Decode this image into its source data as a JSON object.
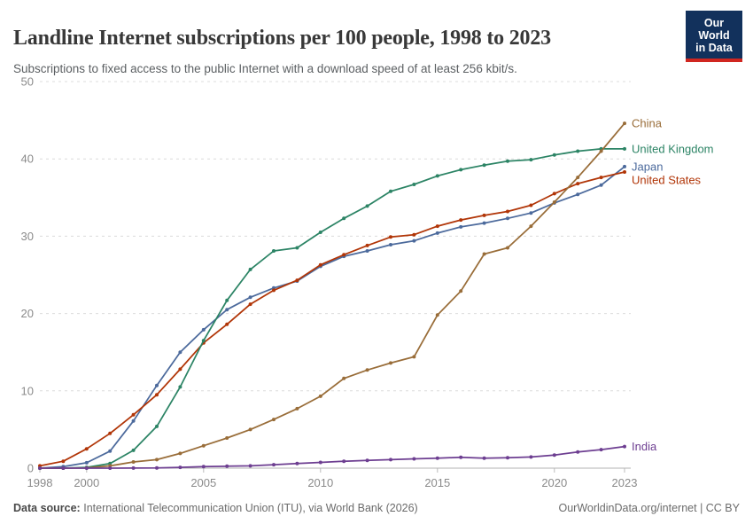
{
  "header": {
    "title": "Landline Internet subscriptions per 100 people, 1998 to 2023",
    "subtitle": "Subscriptions to fixed access to the public Internet with a download speed of at least 256 kbit/s.",
    "logo": {
      "line1": "Our World",
      "line2": "in Data",
      "bg_color": "#12315C",
      "accent_color": "#D02620"
    }
  },
  "chart_data": {
    "type": "line",
    "title": "Landline Internet subscriptions per 100 people, 1998 to 2023",
    "xlabel": "",
    "ylabel": "",
    "x": [
      1998,
      1999,
      2000,
      2001,
      2002,
      2003,
      2004,
      2005,
      2006,
      2007,
      2008,
      2009,
      2010,
      2011,
      2012,
      2013,
      2014,
      2015,
      2016,
      2017,
      2018,
      2019,
      2020,
      2021,
      2022,
      2023
    ],
    "xlim": [
      1998,
      2023
    ],
    "ylim": [
      0,
      50
    ],
    "xticks": [
      1998,
      2000,
      2005,
      2010,
      2015,
      2020,
      2023
    ],
    "yticks": [
      0,
      10,
      20,
      30,
      40,
      50
    ],
    "grid": "horizontal-dashed",
    "legend_position": "right-end-labels",
    "series": [
      {
        "name": "Japan",
        "color": "#4C6A9C",
        "values": [
          0,
          0.2,
          0.7,
          2.2,
          6.1,
          10.7,
          15.0,
          17.9,
          20.5,
          22.1,
          23.3,
          24.2,
          26.1,
          27.4,
          28.1,
          28.9,
          29.4,
          30.4,
          31.2,
          31.7,
          32.3,
          33.0,
          34.3,
          35.4,
          36.6,
          39.0
        ]
      },
      {
        "name": "United States",
        "color": "#B13507",
        "values": [
          0.3,
          0.9,
          2.5,
          4.5,
          6.9,
          9.5,
          12.8,
          16.2,
          18.6,
          21.2,
          23.0,
          24.3,
          26.3,
          27.6,
          28.8,
          29.9,
          30.2,
          31.3,
          32.1,
          32.7,
          33.2,
          34.0,
          35.5,
          36.8,
          37.6,
          38.3
        ]
      },
      {
        "name": "United Kingdom",
        "color": "#2C8465",
        "values": [
          0,
          0,
          0.1,
          0.6,
          2.3,
          5.4,
          10.5,
          16.5,
          21.7,
          25.7,
          28.1,
          28.5,
          30.5,
          32.3,
          33.9,
          35.8,
          36.7,
          37.8,
          38.6,
          39.2,
          39.7,
          39.9,
          40.5,
          41.0,
          41.3,
          41.3
        ]
      },
      {
        "name": "China",
        "color": "#996D39",
        "values": [
          0,
          0,
          0.02,
          0.3,
          0.8,
          1.1,
          1.9,
          2.9,
          3.9,
          5.0,
          6.3,
          7.7,
          9.3,
          11.6,
          12.7,
          13.6,
          14.4,
          19.8,
          22.9,
          27.7,
          28.5,
          31.3,
          34.4,
          37.6,
          41.0,
          44.6
        ]
      },
      {
        "name": "India",
        "color": "#6D3E91",
        "values": [
          0,
          0,
          0,
          0,
          0.01,
          0.02,
          0.1,
          0.2,
          0.25,
          0.3,
          0.45,
          0.6,
          0.75,
          0.9,
          1.0,
          1.1,
          1.2,
          1.3,
          1.4,
          1.3,
          1.35,
          1.45,
          1.7,
          2.1,
          2.4,
          2.8
        ]
      }
    ]
  },
  "footer": {
    "datasource_label": "Data source:",
    "datasource_text": "International Telecommunication Union (ITU), via World Bank (2026)",
    "link": "OurWorldinData.org/internet | CC BY"
  }
}
